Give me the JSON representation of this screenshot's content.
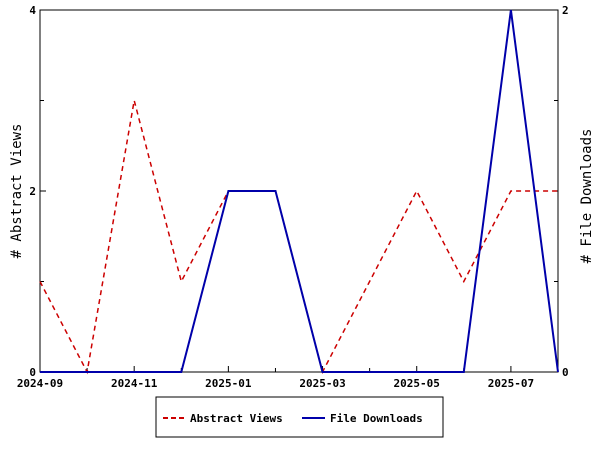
{
  "chart_data": {
    "type": "line",
    "x": [
      "2024-09",
      "2024-10",
      "2024-11",
      "2024-12",
      "2025-01",
      "2025-02",
      "2025-03",
      "2025-04",
      "2025-05",
      "2025-06",
      "2025-07",
      "2025-08"
    ],
    "x_tick_labels": [
      "2024-09",
      "2024-11",
      "2025-01",
      "2025-03",
      "2025-05",
      "2025-07"
    ],
    "ylabel": "# Abstract Views",
    "y2label": "# File Downloads",
    "ylim": [
      0,
      4
    ],
    "y2lim": [
      0,
      2
    ],
    "y_ticks": [
      "0",
      "2",
      "4"
    ],
    "y2_ticks": [
      "0",
      "2"
    ],
    "grid": false,
    "legend_position": "bottom",
    "series": [
      {
        "name": "Abstract Views",
        "axis": "left",
        "color": "#cc0000",
        "style": "dashed",
        "values": [
          1,
          0,
          3,
          1,
          2,
          2,
          0,
          1,
          2,
          1,
          2,
          2
        ]
      },
      {
        "name": "File Downloads",
        "axis": "right",
        "color": "#0000aa",
        "style": "solid",
        "values": [
          0,
          0,
          0,
          0,
          1,
          1,
          0,
          0,
          0,
          0,
          2,
          0
        ]
      }
    ]
  }
}
